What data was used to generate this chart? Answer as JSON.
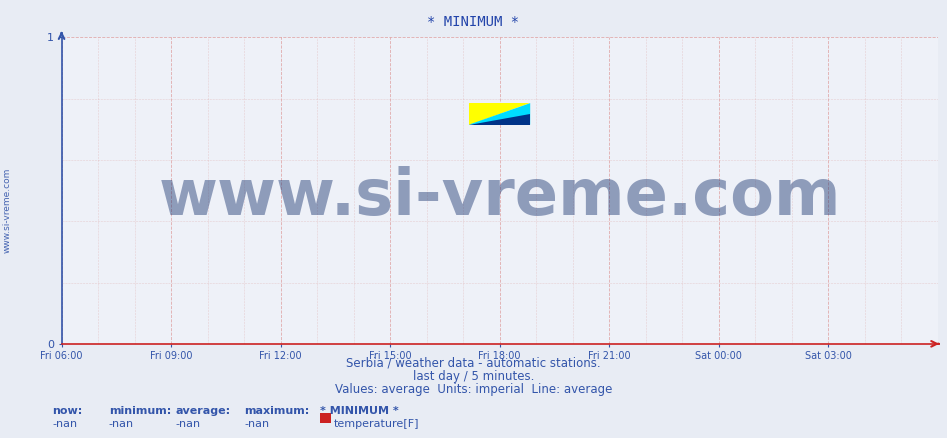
{
  "title": "* MINIMUM *",
  "title_color": "#2244aa",
  "title_fontsize": 10,
  "bg_color": "#e8ecf4",
  "plot_bg_color": "#eef1f8",
  "axis_color": "#3355aa",
  "spine_color_left": "#3355aa",
  "spine_color_bottom": "#cc2222",
  "ytick_labels": [
    "0",
    "1"
  ],
  "ytick_vals": [
    0,
    1
  ],
  "xtick_labels": [
    "Fri 06:00",
    "Fri 09:00",
    "Fri 12:00",
    "Fri 15:00",
    "Fri 18:00",
    "Fri 21:00",
    "Sat 00:00",
    "Sat 03:00"
  ],
  "xtick_vals": [
    0,
    3,
    6,
    9,
    12,
    15,
    18,
    21
  ],
  "xlim": [
    0,
    24
  ],
  "ylim": [
    0,
    1
  ],
  "watermark_text": "www.si-vreme.com",
  "watermark_color": "#1a3570",
  "watermark_alpha": 0.45,
  "watermark_fontsize": 46,
  "sidewater_text": "www.si-vreme.com",
  "sidewater_color": "#3355aa",
  "sidewater_fontsize": 6.5,
  "subtitle1": "Serbia / weather data - automatic stations.",
  "subtitle2": "last day / 5 minutes.",
  "subtitle3": "Values: average  Units: imperial  Line: average",
  "subtitle_color": "#3355aa",
  "subtitle_fontsize": 8.5,
  "legend_header_label": "* MINIMUM *",
  "legend_now_label": "now:",
  "legend_min_label": "minimum:",
  "legend_avg_label": "average:",
  "legend_max_label": "maximum:",
  "legend_now_val": "-nan",
  "legend_min_val": "-nan",
  "legend_avg_val": "-nan",
  "legend_max_val": "-nan",
  "legend_series_label": "temperature[F]",
  "legend_color": "#3355aa",
  "legend_swatch_color": "#cc2222",
  "legend_fontsize": 8,
  "logo_yellow": "#ffff00",
  "logo_cyan": "#00ddff",
  "logo_navy": "#003388",
  "grid_color": "#dd9999",
  "grid_minor_color": "#ddaaaa"
}
